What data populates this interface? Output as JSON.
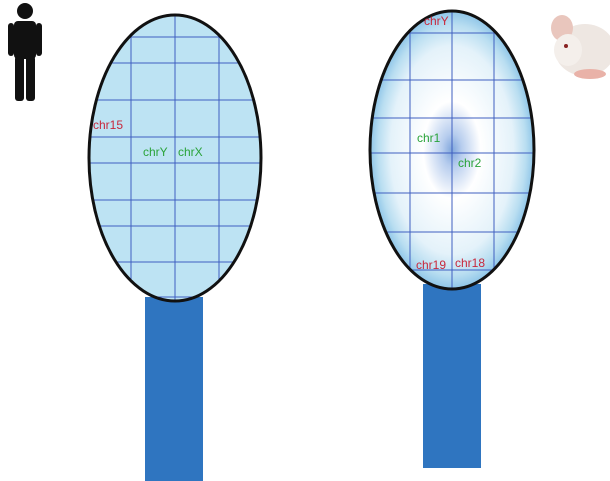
{
  "human_nucleus": {
    "labels": [
      "chr15",
      "chrY",
      "chrX"
    ]
  },
  "mouse_nucleus": {
    "labels": [
      "chrY",
      "chr1",
      "chr2",
      "chr19",
      "chr18"
    ]
  }
}
